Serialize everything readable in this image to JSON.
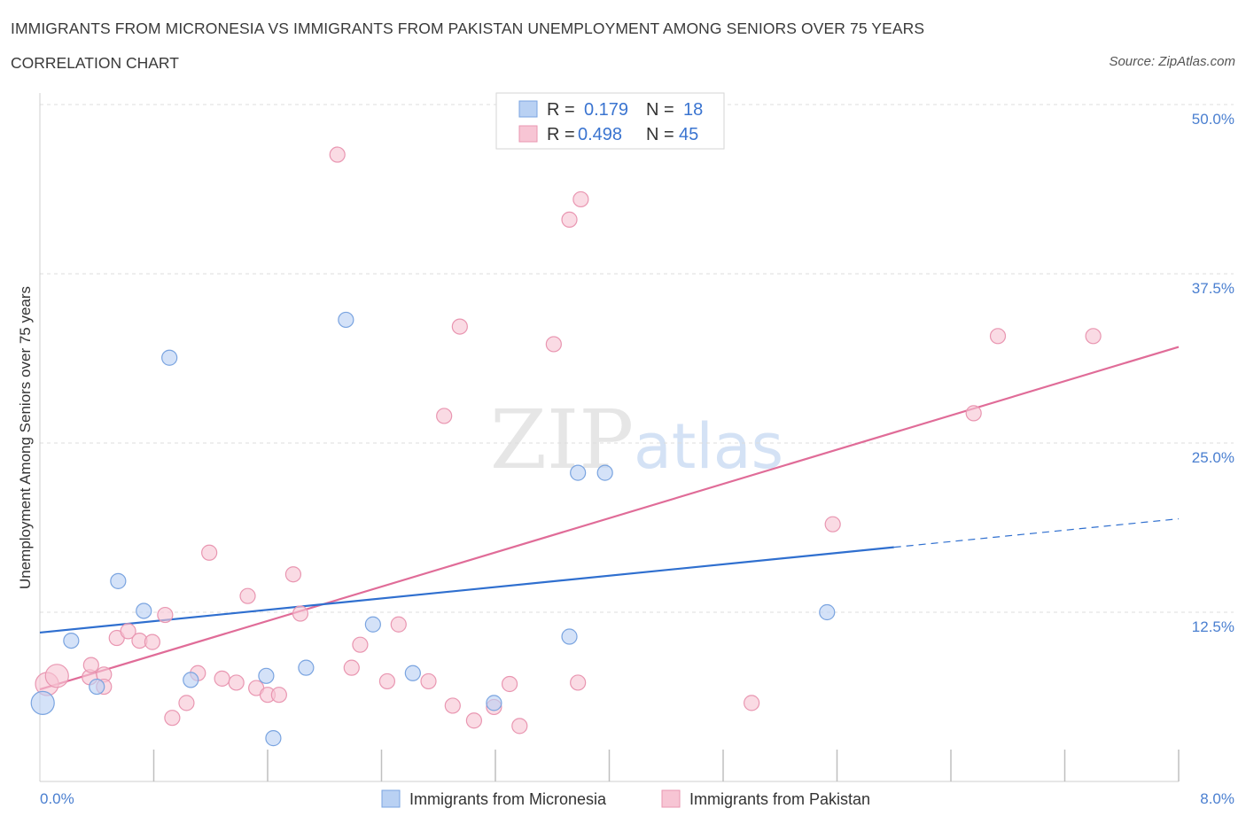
{
  "title": "IMMIGRANTS FROM MICRONESIA VS IMMIGRANTS FROM PAKISTAN UNEMPLOYMENT AMONG SENIORS OVER 75 YEARS",
  "subtitle": "CORRELATION CHART",
  "source": "Source: ZipAtlas.com",
  "watermark": {
    "zip": "ZIP",
    "atlas": "atlas"
  },
  "legend": {
    "rows": [
      {
        "r_label": "R =",
        "r_value": "0.179",
        "n_label": "N =",
        "n_value": "18"
      },
      {
        "r_label": "R =",
        "r_value": "0.498",
        "n_label": "N =",
        "n_value": "45"
      }
    ]
  },
  "bottom_legend": [
    "Immigrants from Micronesia",
    "Immigrants from Pakistan"
  ],
  "colors": {
    "micronesia_fill": "#b9d1f3",
    "micronesia_stroke": "#7aa4e0",
    "micronesia_line": "#2f6fcf",
    "pakistan_fill": "#f7c5d4",
    "pakistan_stroke": "#e996b1",
    "pakistan_line": "#e06c98",
    "tick_text": "#4a7fd0",
    "grid": "#dddddd"
  },
  "chart_data": {
    "type": "scatter",
    "title": "IMMIGRANTS FROM MICRONESIA VS IMMIGRANTS FROM PAKISTAN UNEMPLOYMENT AMONG SENIORS OVER 75 YEARS",
    "xlabel": "",
    "ylabel": "Unemployment Among Seniors over 75 years",
    "xlim": [
      0,
      8
    ],
    "ylim": [
      0,
      50
    ],
    "x_tick_labels": [
      "0.0%",
      "8.0%"
    ],
    "y_ticks": [
      12.5,
      25.0,
      37.5,
      50.0
    ],
    "y_tick_labels": [
      "12.5%",
      "25.0%",
      "37.5%",
      "50.0%"
    ],
    "grid": true,
    "series": [
      {
        "name": "Immigrants from Micronesia",
        "r": 0.179,
        "n": 18,
        "points": [
          {
            "x": 0.02,
            "y": 5.8,
            "big": true
          },
          {
            "x": 0.22,
            "y": 10.4
          },
          {
            "x": 0.4,
            "y": 7.0
          },
          {
            "x": 0.55,
            "y": 14.8
          },
          {
            "x": 0.73,
            "y": 12.6
          },
          {
            "x": 0.91,
            "y": 31.3
          },
          {
            "x": 1.06,
            "y": 7.5
          },
          {
            "x": 1.59,
            "y": 7.8
          },
          {
            "x": 1.64,
            "y": 3.2
          },
          {
            "x": 1.87,
            "y": 8.4
          },
          {
            "x": 2.15,
            "y": 34.1
          },
          {
            "x": 2.34,
            "y": 11.6
          },
          {
            "x": 2.62,
            "y": 8.0
          },
          {
            "x": 3.19,
            "y": 5.8
          },
          {
            "x": 3.72,
            "y": 10.7
          },
          {
            "x": 3.78,
            "y": 22.8
          },
          {
            "x": 3.97,
            "y": 22.8
          },
          {
            "x": 5.53,
            "y": 12.5
          }
        ],
        "trend": {
          "x0": 0,
          "y0": 11.0,
          "x1": 6.0,
          "y1": 17.3,
          "dash_to_x": 8.0,
          "dash_to_y": 19.4
        }
      },
      {
        "name": "Immigrants from Pakistan",
        "r": 0.498,
        "n": 45,
        "points": [
          {
            "x": 0.05,
            "y": 7.2,
            "big": true
          },
          {
            "x": 0.12,
            "y": 7.8,
            "big": true
          },
          {
            "x": 0.35,
            "y": 7.7
          },
          {
            "x": 0.45,
            "y": 7.9
          },
          {
            "x": 0.36,
            "y": 8.6
          },
          {
            "x": 0.45,
            "y": 7.0
          },
          {
            "x": 0.54,
            "y": 10.6
          },
          {
            "x": 0.62,
            "y": 11.1
          },
          {
            "x": 0.7,
            "y": 10.4
          },
          {
            "x": 0.79,
            "y": 10.3
          },
          {
            "x": 0.88,
            "y": 12.3
          },
          {
            "x": 0.93,
            "y": 4.7
          },
          {
            "x": 1.03,
            "y": 5.8
          },
          {
            "x": 1.11,
            "y": 8.0
          },
          {
            "x": 1.19,
            "y": 16.9
          },
          {
            "x": 1.28,
            "y": 7.6
          },
          {
            "x": 1.38,
            "y": 7.3
          },
          {
            "x": 1.46,
            "y": 13.7
          },
          {
            "x": 1.52,
            "y": 6.9
          },
          {
            "x": 1.6,
            "y": 6.4
          },
          {
            "x": 1.68,
            "y": 6.4
          },
          {
            "x": 1.78,
            "y": 15.3
          },
          {
            "x": 1.83,
            "y": 12.4
          },
          {
            "x": 2.09,
            "y": 46.3
          },
          {
            "x": 2.19,
            "y": 8.4
          },
          {
            "x": 2.25,
            "y": 10.1
          },
          {
            "x": 2.44,
            "y": 7.4
          },
          {
            "x": 2.52,
            "y": 11.6
          },
          {
            "x": 2.73,
            "y": 7.4
          },
          {
            "x": 2.84,
            "y": 27.0
          },
          {
            "x": 2.9,
            "y": 5.6
          },
          {
            "x": 2.95,
            "y": 33.6
          },
          {
            "x": 3.05,
            "y": 4.5
          },
          {
            "x": 3.19,
            "y": 5.5
          },
          {
            "x": 3.3,
            "y": 7.2
          },
          {
            "x": 3.37,
            "y": 4.1
          },
          {
            "x": 3.61,
            "y": 32.3
          },
          {
            "x": 3.72,
            "y": 41.5
          },
          {
            "x": 3.8,
            "y": 43.0
          },
          {
            "x": 3.78,
            "y": 7.3
          },
          {
            "x": 5.0,
            "y": 5.8
          },
          {
            "x": 5.57,
            "y": 19.0
          },
          {
            "x": 6.56,
            "y": 27.2
          },
          {
            "x": 6.73,
            "y": 32.9
          },
          {
            "x": 7.4,
            "y": 32.9
          }
        ],
        "trend": {
          "x0": 0,
          "y0": 6.8,
          "x1": 8.0,
          "y1": 32.1
        }
      }
    ]
  }
}
